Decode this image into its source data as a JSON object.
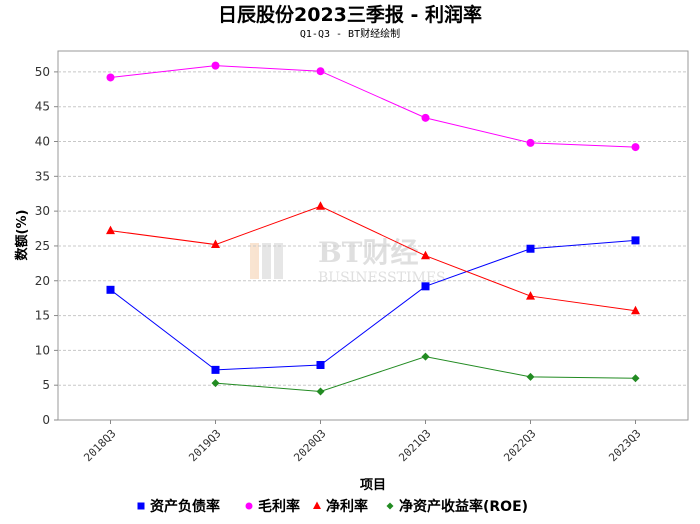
{
  "chart_data": {
    "type": "line",
    "title": "日辰股份2023三季报 - 利润率",
    "subtitle": "Q1-Q3 - BT财经绘制",
    "xlabel": "项目",
    "ylabel": "数额(%)",
    "ylim": [
      0,
      53
    ],
    "yticks": [
      0,
      5,
      10,
      15,
      20,
      25,
      30,
      35,
      40,
      45,
      50
    ],
    "grid": true,
    "legend_position": "bottom",
    "categories": [
      "2018Q3",
      "2019Q3",
      "2020Q3",
      "2021Q3",
      "2022Q3",
      "2023Q3"
    ],
    "series": [
      {
        "name": "资产负债率",
        "color": "#0000ff",
        "marker": "square",
        "values": [
          18.7,
          7.2,
          7.9,
          19.2,
          24.6,
          25.8
        ]
      },
      {
        "name": "毛利率",
        "color": "#ff00ff",
        "marker": "circle",
        "values": [
          49.2,
          50.9,
          50.1,
          43.4,
          39.8,
          39.2
        ]
      },
      {
        "name": "净利率",
        "color": "#ff0000",
        "marker": "triangle",
        "values": [
          27.2,
          25.2,
          30.7,
          23.6,
          17.8,
          15.7
        ]
      },
      {
        "name": "净资产收益率(ROE)",
        "color": "#228b22",
        "marker": "diamond",
        "values": [
          null,
          5.3,
          4.1,
          9.1,
          6.2,
          6.0
        ]
      }
    ]
  },
  "watermark": {
    "main": "BT财经",
    "sub": "BUSINESSTIMES"
  }
}
